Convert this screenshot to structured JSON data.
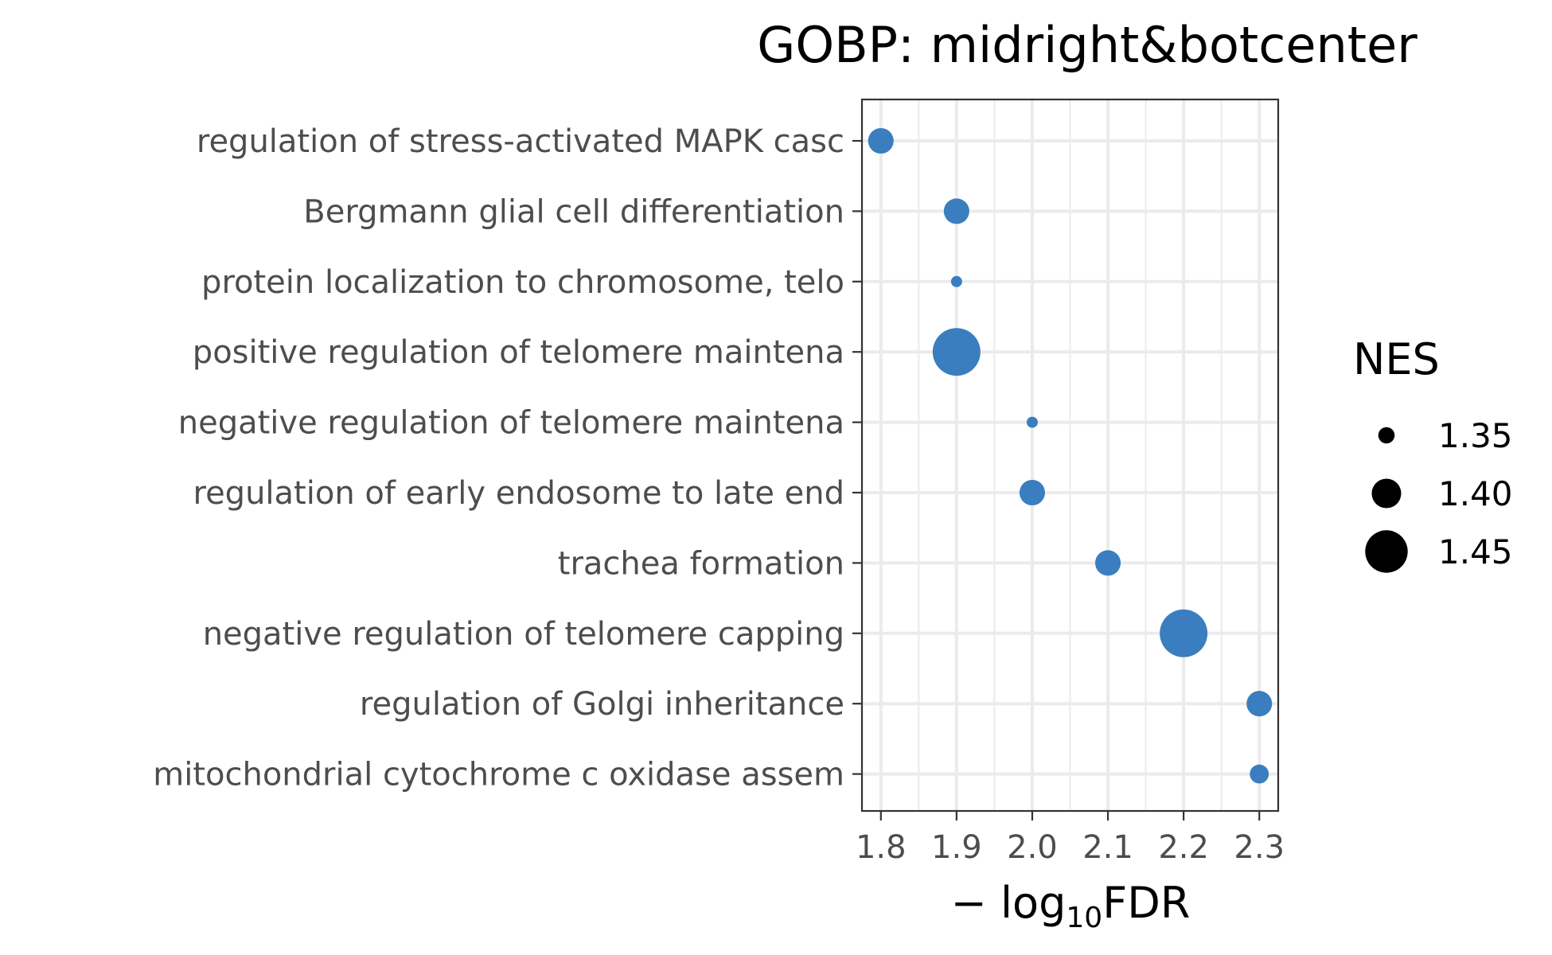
{
  "chart_data": {
    "type": "scatter",
    "title": "GOBP: midright&botcenter",
    "xlabel": {
      "prefix": "− log",
      "sub": "10",
      "suffix": "FDR"
    },
    "xlim": [
      1.775,
      2.325
    ],
    "xticks": [
      "1.8",
      "1.9",
      "2.0",
      "2.1",
      "2.2",
      "2.3"
    ],
    "xtick_values": [
      1.8,
      1.9,
      2.0,
      2.1,
      2.2,
      2.3
    ],
    "grid": true,
    "legend_title": "NES",
    "legend_placement": "right",
    "size_legend": [
      {
        "label": "1.35",
        "value": 1.35
      },
      {
        "label": "1.40",
        "value": 1.4
      },
      {
        "label": "1.45",
        "value": 1.45
      }
    ],
    "point_color": "#3a7ebf",
    "points": [
      {
        "term": "regulation of stress-activated MAPK casc",
        "x": 1.8,
        "nes": 1.385
      },
      {
        "term": "Bergmann glial cell differentiation",
        "x": 1.9,
        "nes": 1.385
      },
      {
        "term": "protein localization to chromosome, telo",
        "x": 1.9,
        "nes": 1.33
      },
      {
        "term": "positive regulation of telomere maintena",
        "x": 1.9,
        "nes": 1.47
      },
      {
        "term": "negative regulation of telomere maintena",
        "x": 2.0,
        "nes": 1.33
      },
      {
        "term": "regulation of early endosome to late end",
        "x": 2.0,
        "nes": 1.385
      },
      {
        "term": "trachea formation",
        "x": 2.1,
        "nes": 1.385
      },
      {
        "term": "negative regulation of telomere capping",
        "x": 2.2,
        "nes": 1.47
      },
      {
        "term": "regulation of Golgi inheritance",
        "x": 2.3,
        "nes": 1.385
      },
      {
        "term": "mitochondrial cytochrome c oxidase assem",
        "x": 2.3,
        "nes": 1.36
      }
    ]
  }
}
